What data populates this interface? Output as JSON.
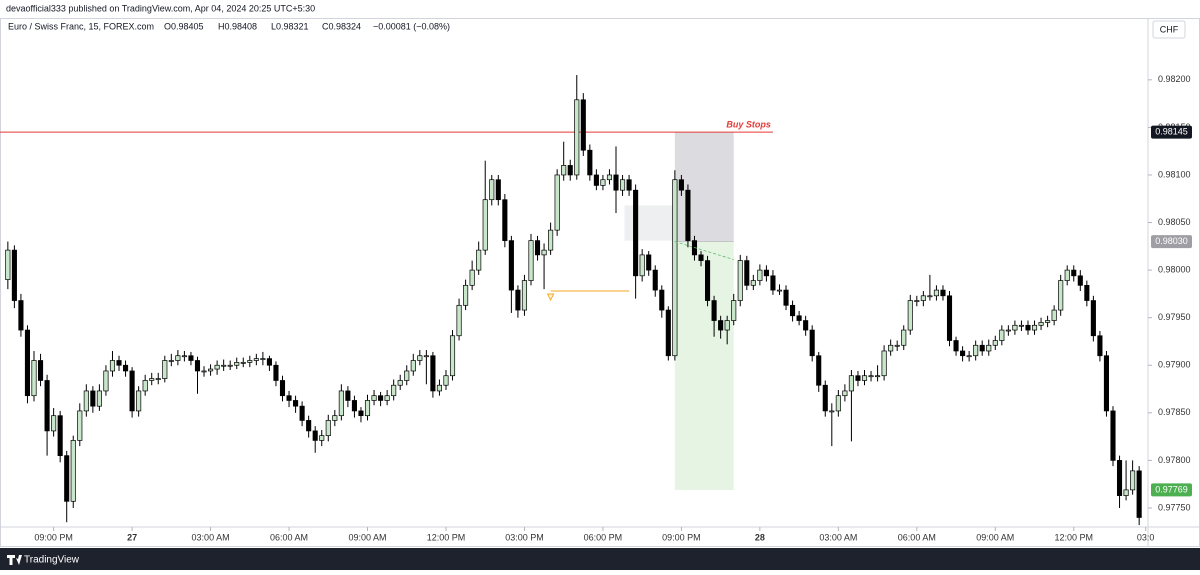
{
  "header": "devaofficial333 published on TradingView.com, Apr 04, 2024 20:25 UTC+5:30",
  "footer": "TradingView",
  "chart_data": {
    "type": "candlestick",
    "legend": {
      "symbol": "Euro / Swiss Franc, 15, FOREX.com",
      "open": "O0.98405",
      "high": "H0.98408",
      "low": "L0.98321",
      "close": "C0.98324",
      "change": "−0.00081 (−0.08%)"
    },
    "currency": "CHF",
    "up_color": "#c8e6c9",
    "down_color": "#000000",
    "grid": false,
    "xlim": [
      -1.2,
      174.2
    ],
    "ylim": [
      0.9773,
      0.98245
    ],
    "yticks": [
      {
        "value": 0.9775,
        "label": "0.97750"
      },
      {
        "value": 0.978,
        "label": "0.97800"
      },
      {
        "value": 0.9785,
        "label": "0.97850"
      },
      {
        "value": 0.979,
        "label": "0.97900"
      },
      {
        "value": 0.9795,
        "label": "0.97950"
      },
      {
        "value": 0.98,
        "label": "0.98000"
      },
      {
        "value": 0.9805,
        "label": "0.98050"
      },
      {
        "value": 0.981,
        "label": "0.98100"
      },
      {
        "value": 0.9815,
        "label": "0.98150"
      },
      {
        "value": 0.982,
        "label": "0.98200"
      }
    ],
    "xticks": [
      {
        "value": 7,
        "label": "09:00 PM"
      },
      {
        "value": 19,
        "label": "27"
      },
      {
        "value": 31,
        "label": "03:00 AM"
      },
      {
        "value": 43,
        "label": "06:00 AM"
      },
      {
        "value": 55,
        "label": "09:00 AM"
      },
      {
        "value": 67,
        "label": "12:00 PM"
      },
      {
        "value": 79,
        "label": "03:00 PM"
      },
      {
        "value": 91,
        "label": "06:00 PM"
      },
      {
        "value": 103,
        "label": "09:00 PM"
      },
      {
        "value": 115,
        "label": "28"
      },
      {
        "value": 127,
        "label": "03:00 AM"
      },
      {
        "value": 139,
        "label": "06:00 AM"
      },
      {
        "value": 151,
        "label": "09:00 AM"
      },
      {
        "value": 163,
        "label": "12:00 PM"
      },
      {
        "value": 174,
        "label": "03:0"
      }
    ],
    "candles": [
      [
        0.9799,
        0.9803,
        0.9798,
        0.98021
      ],
      [
        0.98021,
        0.98026,
        0.9796,
        0.97968
      ],
      [
        0.97968,
        0.97975,
        0.9793,
        0.97937
      ],
      [
        0.97937,
        0.97942,
        0.9786,
        0.97868
      ],
      [
        0.97868,
        0.97915,
        0.97862,
        0.97905
      ],
      [
        0.97905,
        0.97912,
        0.97878,
        0.97884
      ],
      [
        0.97884,
        0.9789,
        0.97805,
        0.97831
      ],
      [
        0.97831,
        0.97855,
        0.97825,
        0.97847
      ],
      [
        0.97847,
        0.97852,
        0.97798,
        0.97805
      ],
      [
        0.97805,
        0.9781,
        0.97735,
        0.97757
      ],
      [
        0.97757,
        0.97826,
        0.9775,
        0.97821
      ],
      [
        0.97821,
        0.9786,
        0.97815,
        0.97852
      ],
      [
        0.97852,
        0.9788,
        0.97846,
        0.97873
      ],
      [
        0.97873,
        0.97878,
        0.9785,
        0.97857
      ],
      [
        0.97857,
        0.9788,
        0.97852,
        0.97873
      ],
      [
        0.97873,
        0.979,
        0.97868,
        0.97894
      ],
      [
        0.97894,
        0.97915,
        0.97888,
        0.97905
      ],
      [
        0.97905,
        0.9791,
        0.97894,
        0.979
      ],
      [
        0.979,
        0.97905,
        0.97888,
        0.97894
      ],
      [
        0.97894,
        0.97898,
        0.97845,
        0.97852
      ],
      [
        0.97852,
        0.97878,
        0.97846,
        0.97873
      ],
      [
        0.97873,
        0.9789,
        0.97868,
        0.97884
      ],
      [
        0.97884,
        0.97892,
        0.97879,
        0.97886
      ],
      [
        0.97886,
        0.97892,
        0.9788,
        0.97886
      ],
      [
        0.97886,
        0.9791,
        0.97882,
        0.97905
      ],
      [
        0.97905,
        0.97912,
        0.97899,
        0.97905
      ],
      [
        0.97905,
        0.97916,
        0.979,
        0.9791
      ],
      [
        0.9791,
        0.97915,
        0.97904,
        0.9791
      ],
      [
        0.9791,
        0.97914,
        0.979,
        0.97905
      ],
      [
        0.97905,
        0.97909,
        0.9787,
        0.97894
      ],
      [
        0.97894,
        0.97899,
        0.97888,
        0.97894
      ],
      [
        0.97894,
        0.97901,
        0.97889,
        0.97896
      ],
      [
        0.97896,
        0.97905,
        0.9789,
        0.979
      ],
      [
        0.979,
        0.97906,
        0.97894,
        0.979
      ],
      [
        0.979,
        0.97905,
        0.97895,
        0.979
      ],
      [
        0.979,
        0.97908,
        0.97896,
        0.97903
      ],
      [
        0.97903,
        0.97908,
        0.97898,
        0.97903
      ],
      [
        0.97903,
        0.9791,
        0.97898,
        0.97905
      ],
      [
        0.97905,
        0.97912,
        0.979,
        0.97907
      ],
      [
        0.97907,
        0.97914,
        0.979,
        0.97907
      ],
      [
        0.97907,
        0.9791,
        0.97894,
        0.979
      ],
      [
        0.979,
        0.97904,
        0.97878,
        0.97884
      ],
      [
        0.97884,
        0.97889,
        0.97862,
        0.97868
      ],
      [
        0.97868,
        0.97873,
        0.97856,
        0.97863
      ],
      [
        0.97863,
        0.97868,
        0.9785,
        0.97857
      ],
      [
        0.97857,
        0.97862,
        0.97836,
        0.97842
      ],
      [
        0.97842,
        0.97847,
        0.97824,
        0.97831
      ],
      [
        0.97831,
        0.97836,
        0.97808,
        0.97821
      ],
      [
        0.97821,
        0.97832,
        0.97815,
        0.97826
      ],
      [
        0.97826,
        0.97848,
        0.9782,
        0.97842
      ],
      [
        0.97842,
        0.97853,
        0.97836,
        0.97847
      ],
      [
        0.97847,
        0.9788,
        0.97842,
        0.97873
      ],
      [
        0.97873,
        0.97878,
        0.97856,
        0.97863
      ],
      [
        0.97863,
        0.97868,
        0.97845,
        0.97852
      ],
      [
        0.97852,
        0.97856,
        0.9784,
        0.97847
      ],
      [
        0.97847,
        0.97869,
        0.97842,
        0.97863
      ],
      [
        0.97863,
        0.97874,
        0.97858,
        0.97868
      ],
      [
        0.97868,
        0.97872,
        0.97857,
        0.97863
      ],
      [
        0.97863,
        0.97874,
        0.97858,
        0.97868
      ],
      [
        0.97868,
        0.97885,
        0.97863,
        0.97879
      ],
      [
        0.97879,
        0.9789,
        0.97874,
        0.97884
      ],
      [
        0.97884,
        0.979,
        0.97879,
        0.97894
      ],
      [
        0.97894,
        0.97912,
        0.97889,
        0.97905
      ],
      [
        0.97905,
        0.97916,
        0.979,
        0.9791
      ],
      [
        0.9791,
        0.97916,
        0.9788,
        0.9791
      ],
      [
        0.9791,
        0.97914,
        0.97866,
        0.97873
      ],
      [
        0.97873,
        0.97885,
        0.97868,
        0.97879
      ],
      [
        0.97879,
        0.97895,
        0.97874,
        0.97889
      ],
      [
        0.97889,
        0.97937,
        0.97884,
        0.97931
      ],
      [
        0.97931,
        0.9797,
        0.97926,
        0.97963
      ],
      [
        0.97963,
        0.9799,
        0.97958,
        0.97984
      ],
      [
        0.97984,
        0.9801,
        0.97979,
        0.98
      ],
      [
        0.98,
        0.9803,
        0.97995,
        0.98021
      ],
      [
        0.98021,
        0.98115,
        0.98016,
        0.98074
      ],
      [
        0.98074,
        0.981,
        0.98068,
        0.98095
      ],
      [
        0.98095,
        0.981,
        0.98068,
        0.98074
      ],
      [
        0.98074,
        0.9808,
        0.98024,
        0.98031
      ],
      [
        0.98031,
        0.98036,
        0.97955,
        0.97979
      ],
      [
        0.97979,
        0.97984,
        0.9795,
        0.97958
      ],
      [
        0.97958,
        0.97995,
        0.97952,
        0.97989
      ],
      [
        0.97989,
        0.98038,
        0.97984,
        0.98031
      ],
      [
        0.98031,
        0.98036,
        0.9801,
        0.98016
      ],
      [
        0.98016,
        0.98028,
        0.9798,
        0.98021
      ],
      [
        0.98021,
        0.9805,
        0.98016,
        0.98042
      ],
      [
        0.98042,
        0.98106,
        0.98036,
        0.981
      ],
      [
        0.981,
        0.98135,
        0.98094,
        0.9811
      ],
      [
        0.9811,
        0.98116,
        0.98094,
        0.981
      ],
      [
        0.981,
        0.98205,
        0.98095,
        0.98179
      ],
      [
        0.98179,
        0.98186,
        0.9812,
        0.98126
      ],
      [
        0.98126,
        0.98132,
        0.98094,
        0.981
      ],
      [
        0.981,
        0.98106,
        0.98084,
        0.98089
      ],
      [
        0.98089,
        0.981,
        0.98084,
        0.98095
      ],
      [
        0.98095,
        0.98106,
        0.9809,
        0.981
      ],
      [
        0.981,
        0.9813,
        0.9806,
        0.98084
      ],
      [
        0.98084,
        0.981,
        0.98078,
        0.98095
      ],
      [
        0.98095,
        0.981,
        0.98078,
        0.98084
      ],
      [
        0.98084,
        0.9809,
        0.9797,
        0.97994
      ],
      [
        0.97994,
        0.98022,
        0.97988,
        0.98016
      ],
      [
        0.98016,
        0.9802,
        0.97994,
        0.98
      ],
      [
        0.98,
        0.98005,
        0.97972,
        0.97979
      ],
      [
        0.97979,
        0.97984,
        0.9795,
        0.97958
      ],
      [
        0.97958,
        0.97962,
        0.97905,
        0.9791
      ],
      [
        0.9791,
        0.98105,
        0.97905,
        0.98095
      ],
      [
        0.98095,
        0.981,
        0.98078,
        0.98084
      ],
      [
        0.98084,
        0.9809,
        0.98024,
        0.98031
      ],
      [
        0.98031,
        0.98036,
        0.9801,
        0.98016
      ],
      [
        0.98016,
        0.9802,
        0.98004,
        0.9801
      ],
      [
        0.9801,
        0.98015,
        0.97962,
        0.97968
      ],
      [
        0.97968,
        0.97973,
        0.9793,
        0.97947
      ],
      [
        0.97947,
        0.97952,
        0.97928,
        0.97937
      ],
      [
        0.97937,
        0.97952,
        0.97922,
        0.97947
      ],
      [
        0.97947,
        0.97975,
        0.97942,
        0.97968
      ],
      [
        0.97968,
        0.98016,
        0.97962,
        0.9801
      ],
      [
        0.9801,
        0.98015,
        0.97979,
        0.97984
      ],
      [
        0.97984,
        0.97995,
        0.97979,
        0.97989
      ],
      [
        0.97989,
        0.98006,
        0.97984,
        0.98
      ],
      [
        0.98,
        0.98005,
        0.97988,
        0.97994
      ],
      [
        0.97994,
        0.98,
        0.97974,
        0.97979
      ],
      [
        0.97979,
        0.97985,
        0.97974,
        0.97979
      ],
      [
        0.97979,
        0.97984,
        0.97958,
        0.97963
      ],
      [
        0.97963,
        0.97968,
        0.97946,
        0.97952
      ],
      [
        0.97952,
        0.97957,
        0.97942,
        0.97947
      ],
      [
        0.97947,
        0.97952,
        0.97931,
        0.97937
      ],
      [
        0.97937,
        0.97942,
        0.97904,
        0.9791
      ],
      [
        0.9791,
        0.97914,
        0.97872,
        0.97879
      ],
      [
        0.97879,
        0.97884,
        0.97846,
        0.97852
      ],
      [
        0.97852,
        0.9786,
        0.97815,
        0.97852
      ],
      [
        0.97852,
        0.97874,
        0.97846,
        0.97868
      ],
      [
        0.97868,
        0.9788,
        0.97862,
        0.97873
      ],
      [
        0.97873,
        0.97895,
        0.9782,
        0.97889
      ],
      [
        0.97889,
        0.97894,
        0.97878,
        0.97884
      ],
      [
        0.97884,
        0.97895,
        0.97879,
        0.97889
      ],
      [
        0.97889,
        0.97894,
        0.97883,
        0.97889
      ],
      [
        0.97889,
        0.979,
        0.97883,
        0.97889
      ],
      [
        0.97889,
        0.97921,
        0.97884,
        0.97915
      ],
      [
        0.97915,
        0.97927,
        0.9791,
        0.97921
      ],
      [
        0.97921,
        0.97926,
        0.97915,
        0.97921
      ],
      [
        0.97921,
        0.97942,
        0.97916,
        0.97937
      ],
      [
        0.97937,
        0.97974,
        0.97932,
        0.97968
      ],
      [
        0.97968,
        0.97973,
        0.97962,
        0.97968
      ],
      [
        0.97968,
        0.97978,
        0.97962,
        0.97973
      ],
      [
        0.97973,
        0.97995,
        0.97968,
        0.97973
      ],
      [
        0.97973,
        0.97984,
        0.97968,
        0.97979
      ],
      [
        0.97979,
        0.97984,
        0.97968,
        0.97973
      ],
      [
        0.97973,
        0.97978,
        0.9792,
        0.97926
      ],
      [
        0.97926,
        0.9793,
        0.9791,
        0.97915
      ],
      [
        0.97915,
        0.9792,
        0.97904,
        0.9791
      ],
      [
        0.9791,
        0.97915,
        0.97904,
        0.9791
      ],
      [
        0.9791,
        0.97926,
        0.97905,
        0.97921
      ],
      [
        0.97921,
        0.97926,
        0.9791,
        0.97915
      ],
      [
        0.97915,
        0.97927,
        0.9791,
        0.97921
      ],
      [
        0.97921,
        0.97931,
        0.97916,
        0.97926
      ],
      [
        0.97926,
        0.97942,
        0.97921,
        0.97937
      ],
      [
        0.97937,
        0.97942,
        0.97931,
        0.97937
      ],
      [
        0.97937,
        0.97947,
        0.97932,
        0.97942
      ],
      [
        0.97942,
        0.97947,
        0.97936,
        0.97942
      ],
      [
        0.97942,
        0.97947,
        0.97932,
        0.97937
      ],
      [
        0.97937,
        0.97947,
        0.97932,
        0.97942
      ],
      [
        0.97942,
        0.9795,
        0.97937,
        0.97945
      ],
      [
        0.97945,
        0.97952,
        0.9794,
        0.97947
      ],
      [
        0.97947,
        0.97963,
        0.97942,
        0.97958
      ],
      [
        0.97958,
        0.97995,
        0.97952,
        0.97989
      ],
      [
        0.97989,
        0.98005,
        0.97984,
        0.98
      ],
      [
        0.98,
        0.98005,
        0.97988,
        0.97994
      ],
      [
        0.97994,
        0.98,
        0.97978,
        0.97984
      ],
      [
        0.97984,
        0.97989,
        0.97962,
        0.97968
      ],
      [
        0.97968,
        0.97973,
        0.97925,
        0.97931
      ],
      [
        0.97931,
        0.97936,
        0.97904,
        0.9791
      ],
      [
        0.9791,
        0.97915,
        0.97846,
        0.97852
      ],
      [
        0.97852,
        0.97857,
        0.97794,
        0.978
      ],
      [
        0.978,
        0.97805,
        0.9775,
        0.97763
      ],
      [
        0.97763,
        0.978,
        0.97758,
        0.97769
      ],
      [
        0.97769,
        0.978,
        0.97764,
        0.97789
      ],
      [
        0.97789,
        0.97794,
        0.97732,
        0.9774
      ]
    ],
    "level_line": {
      "label": "Buy Stops",
      "value": 0.98145,
      "start": -1.2,
      "end": 117,
      "color": "#e53935"
    },
    "position": {
      "start": 102,
      "end": 111,
      "entry": 0.9803,
      "stop": 0.98145,
      "target": 0.97769,
      "stop_color": "#dcdce0",
      "target_color": "#e6f4e4"
    },
    "zone": {
      "start": 94.3,
      "end": 102,
      "top": 0.98068,
      "bottom": 0.98031,
      "color": "#eeeff0"
    },
    "marker_line": {
      "value": 0.97978,
      "start": 83,
      "end": 95,
      "color": "#f5a623"
    },
    "price_labels": [
      {
        "value": 0.98145,
        "label": "0.98145",
        "color": "#131722"
      },
      {
        "value": 0.9803,
        "label": "0.98030",
        "color": "#9e9ea4"
      },
      {
        "value": 0.97769,
        "label": "0.97769",
        "color": "#4caf50"
      }
    ]
  }
}
